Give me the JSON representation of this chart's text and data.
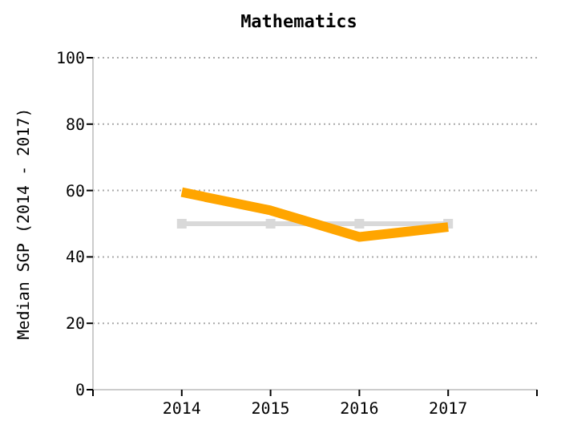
{
  "chart_data": {
    "type": "line",
    "title": "Mathematics",
    "ylabel": "Median SGP (2014 - 2017)",
    "x": [
      2014,
      2015,
      2016,
      2017
    ],
    "series": [
      {
        "color": "#d9d9d9",
        "values": [
          50,
          50,
          50,
          50
        ],
        "marker": "square"
      },
      {
        "color": "#ffa500",
        "values": [
          59.5,
          54,
          46,
          49
        ],
        "marker": "none"
      }
    ],
    "xlim": [
      2013,
      2018
    ],
    "xticks": [
      {
        "value": 2013,
        "label": null
      },
      2014,
      2015,
      2016,
      2017,
      {
        "value": 2018,
        "label": null
      }
    ],
    "ylim": [
      0,
      100
    ],
    "yticks": [
      0,
      20,
      40,
      60,
      80,
      100
    ],
    "grid": "y",
    "line_style": "solid"
  }
}
